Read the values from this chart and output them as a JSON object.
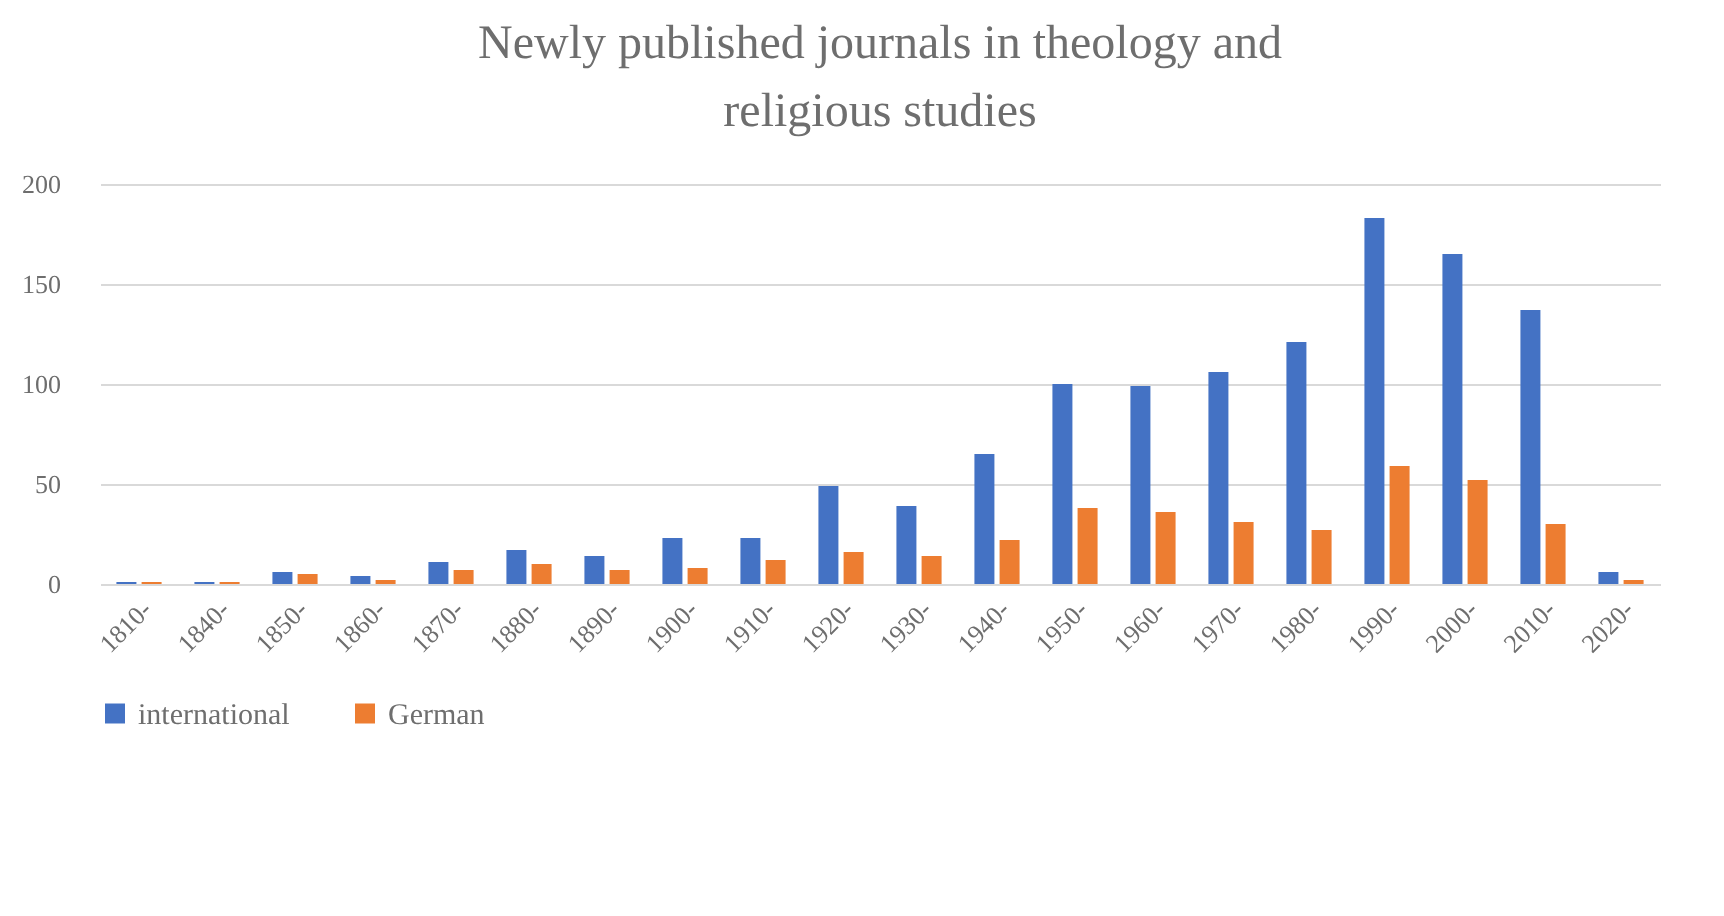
{
  "chart_data": {
    "type": "bar",
    "title": [
      "Newly published journals in theology and",
      "religious studies"
    ],
    "categories": [
      "1810-",
      "1840-",
      "1850-",
      "1860-",
      "1870-",
      "1880-",
      "1890-",
      "1900-",
      "1910-",
      "1920-",
      "1930-",
      "1940-",
      "1950-",
      "1960-",
      "1970-",
      "1980-",
      "1990-",
      "2000-",
      "2010-",
      "2020-"
    ],
    "series": [
      {
        "name": "international",
        "color": "#4472c4",
        "values": [
          1,
          1,
          6,
          4,
          11,
          17,
          14,
          23,
          23,
          49,
          39,
          65,
          100,
          99,
          106,
          121,
          183,
          165,
          137,
          6
        ]
      },
      {
        "name": "German",
        "color": "#ed7d31",
        "values": [
          1,
          1,
          5,
          2,
          7,
          10,
          7,
          8,
          12,
          16,
          14,
          22,
          38,
          36,
          31,
          27,
          59,
          52,
          30,
          2
        ]
      }
    ],
    "ylim": [
      0,
      200
    ],
    "yticks": [
      0,
      50,
      100,
      150,
      200
    ],
    "grid": "y",
    "legend": "bottom"
  }
}
